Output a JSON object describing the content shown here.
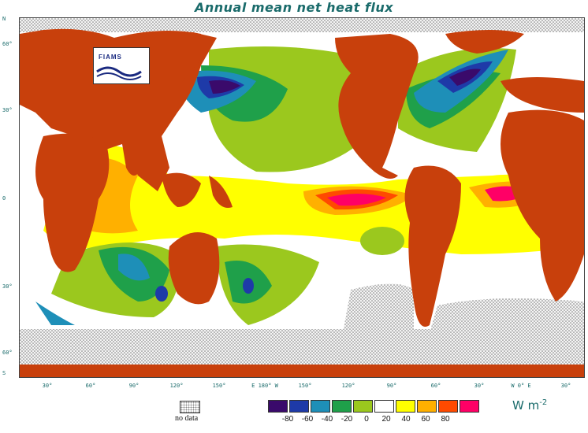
{
  "title": "Annual mean net heat flux",
  "logo_text": "FIAMS",
  "lat_labels": [
    "N",
    "60°",
    "30°",
    "0",
    "30°",
    "60°",
    "S"
  ],
  "lon_labels": [
    "30°",
    "60°",
    "90°",
    "120°",
    "150°",
    "E 180° W",
    "150°",
    "120°",
    "90°",
    "60°",
    "30°",
    "W 0° E",
    "30°"
  ],
  "legend": {
    "no_data_label": "no data",
    "unit": "W m",
    "unit_exp": "-2",
    "ticks": [
      "-80",
      "-60",
      "-40",
      "-20",
      "0",
      "20",
      "40",
      "60",
      "80"
    ],
    "colors": [
      "#3a0a6b",
      "#1e3aa8",
      "#1e8fb8",
      "#1fa04a",
      "#9bc81e",
      "#ffffff",
      "#ffff00",
      "#ffb000",
      "#ff4a00",
      "#ff0066"
    ]
  },
  "colors": {
    "land": "#c8400c",
    "no_data_fill": "#f2f2f2",
    "title": "#1a6b6b"
  }
}
